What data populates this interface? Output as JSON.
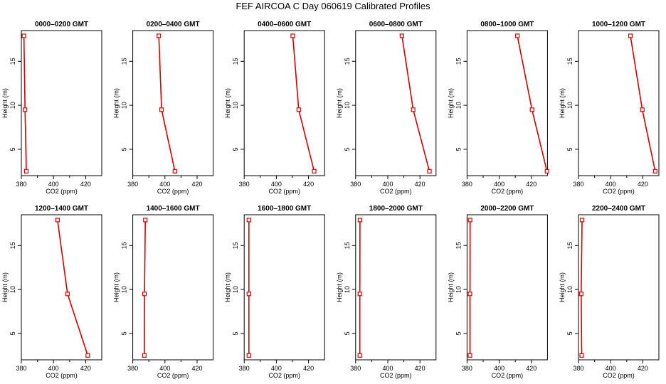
{
  "title": "FEF AIRCOA C  Day 060619  Calibrated Profiles",
  "colors": {
    "profile": "#d40000",
    "axis": "#000000",
    "background": "#ffffff"
  },
  "chart_data": [
    {
      "type": "line",
      "title": "0000–0200 GMT",
      "xlabel": "CO2 (ppm)",
      "ylabel": "Height (m)",
      "xlim": [
        380,
        430
      ],
      "ylim": [
        2,
        18.5
      ],
      "xticks": [
        380,
        400,
        420
      ],
      "yticks": [
        5,
        10,
        15
      ],
      "grid": false,
      "x": [
        381.6,
        382.3,
        383.1
      ],
      "y": [
        17.9,
        9.5,
        2.5
      ]
    },
    {
      "type": "line",
      "title": "0200–0400 GMT",
      "xlabel": "CO2 (ppm)",
      "ylabel": "Height (m)",
      "xlim": [
        380,
        430
      ],
      "ylim": [
        2,
        18.5
      ],
      "xticks": [
        380,
        400,
        420
      ],
      "yticks": [
        5,
        10,
        15
      ],
      "grid": false,
      "x": [
        396.2,
        397.9,
        406.2
      ],
      "y": [
        17.9,
        9.5,
        2.5
      ]
    },
    {
      "type": "line",
      "title": "0400–0600 GMT",
      "xlabel": "CO2 (ppm)",
      "ylabel": "Height (m)",
      "xlim": [
        380,
        430
      ],
      "ylim": [
        2,
        18.5
      ],
      "xticks": [
        380,
        400,
        420
      ],
      "yticks": [
        5,
        10,
        15
      ],
      "grid": false,
      "x": [
        410.2,
        413.9,
        423.5
      ],
      "y": [
        17.9,
        9.5,
        2.5
      ]
    },
    {
      "type": "line",
      "title": "0600–0800 GMT",
      "xlabel": "CO2 (ppm)",
      "ylabel": "Height (m)",
      "xlim": [
        380,
        430
      ],
      "ylim": [
        2,
        18.5
      ],
      "xticks": [
        380,
        400,
        420
      ],
      "yticks": [
        5,
        10,
        15
      ],
      "grid": false,
      "x": [
        408.8,
        415.8,
        425.9
      ],
      "y": [
        17.9,
        9.5,
        2.5
      ]
    },
    {
      "type": "line",
      "title": "0800–1000 GMT",
      "xlabel": "CO2 (ppm)",
      "ylabel": "Height (m)",
      "xlim": [
        380,
        430
      ],
      "ylim": [
        2,
        18.5
      ],
      "xticks": [
        380,
        400,
        420
      ],
      "yticks": [
        5,
        10,
        15
      ],
      "grid": false,
      "x": [
        411.3,
        420.4,
        429.7
      ],
      "y": [
        17.9,
        9.5,
        2.5
      ]
    },
    {
      "type": "line",
      "title": "1000–1200 GMT",
      "xlabel": "CO2 (ppm)",
      "ylabel": "Height (m)",
      "xlim": [
        380,
        430
      ],
      "ylim": [
        2,
        18.5
      ],
      "xticks": [
        380,
        400,
        420
      ],
      "yticks": [
        5,
        10,
        15
      ],
      "grid": false,
      "x": [
        412.3,
        419.7,
        427.7
      ],
      "y": [
        17.9,
        9.5,
        2.5
      ]
    },
    {
      "type": "line",
      "title": "1200–1400 GMT",
      "xlabel": "CO2 (ppm)",
      "ylabel": "Height (m)",
      "xlim": [
        380,
        430
      ],
      "ylim": [
        2,
        18.5
      ],
      "xticks": [
        380,
        400,
        420
      ],
      "yticks": [
        5,
        10,
        15
      ],
      "grid": false,
      "x": [
        402.5,
        408.7,
        421.3
      ],
      "y": [
        17.9,
        9.5,
        2.5
      ]
    },
    {
      "type": "line",
      "title": "1400–1600 GMT",
      "xlabel": "CO2 (ppm)",
      "ylabel": "Height (m)",
      "xlim": [
        380,
        430
      ],
      "ylim": [
        2,
        18.5
      ],
      "xticks": [
        380,
        400,
        420
      ],
      "yticks": [
        5,
        10,
        15
      ],
      "grid": false,
      "x": [
        387.8,
        387.3,
        387.2
      ],
      "y": [
        17.9,
        9.5,
        2.5
      ]
    },
    {
      "type": "line",
      "title": "1600–1800 GMT",
      "xlabel": "CO2 (ppm)",
      "ylabel": "Height (m)",
      "xlim": [
        380,
        430
      ],
      "ylim": [
        2,
        18.5
      ],
      "xticks": [
        380,
        400,
        420
      ],
      "yticks": [
        5,
        10,
        15
      ],
      "grid": false,
      "x": [
        382.9,
        382.9,
        382.9
      ],
      "y": [
        17.9,
        9.5,
        2.5
      ]
    },
    {
      "type": "line",
      "title": "1800–2000 GMT",
      "xlabel": "CO2 (ppm)",
      "ylabel": "Height (m)",
      "xlim": [
        380,
        430
      ],
      "ylim": [
        2,
        18.5
      ],
      "xticks": [
        380,
        400,
        420
      ],
      "yticks": [
        5,
        10,
        15
      ],
      "grid": false,
      "x": [
        382.7,
        382.6,
        382.6
      ],
      "y": [
        17.9,
        9.5,
        2.5
      ]
    },
    {
      "type": "line",
      "title": "2000–2200 GMT",
      "xlabel": "CO2 (ppm)",
      "ylabel": "Height (m)",
      "xlim": [
        380,
        430
      ],
      "ylim": [
        2,
        18.5
      ],
      "xticks": [
        380,
        400,
        420
      ],
      "yticks": [
        5,
        10,
        15
      ],
      "grid": false,
      "x": [
        381.9,
        381.8,
        381.8
      ],
      "y": [
        17.9,
        9.5,
        2.5
      ]
    },
    {
      "type": "line",
      "title": "2200–2400 GMT",
      "xlabel": "CO2 (ppm)",
      "ylabel": "Height (m)",
      "xlim": [
        380,
        430
      ],
      "ylim": [
        2,
        18.5
      ],
      "xticks": [
        380,
        400,
        420
      ],
      "yticks": [
        5,
        10,
        15
      ],
      "grid": false,
      "x": [
        382.2,
        381.7,
        382.0
      ],
      "y": [
        17.9,
        9.5,
        2.5
      ]
    }
  ]
}
